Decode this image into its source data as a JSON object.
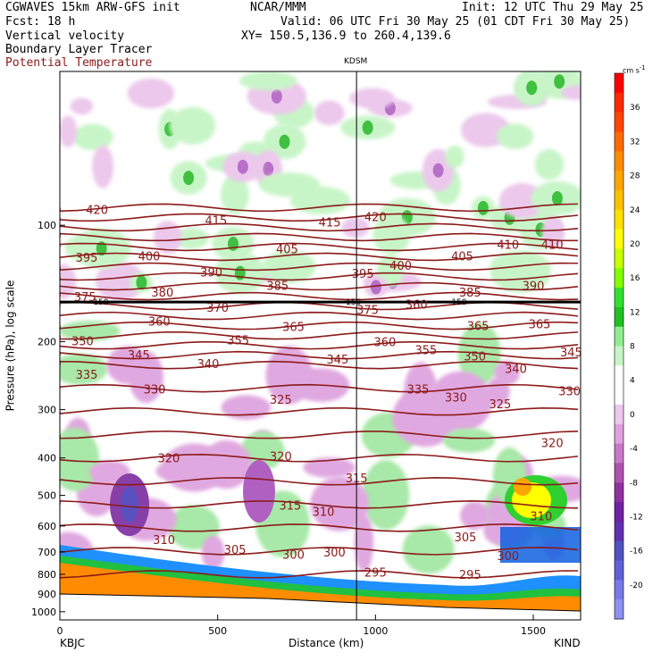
{
  "header": {
    "model": "CGWAVES 15km ARW-GFS init",
    "center": "NCAR/MMM",
    "init": "Init: 12 UTC Thu 29 May 25",
    "fcst": "Fcst:   18 h",
    "valid": "Valid: 06 UTC Fri 30 May 25 (01 CDT Fri 30 May 25)",
    "field1": "Vertical velocity",
    "xy": "XY= 150.5,136.9 to 260.4,139.6",
    "field2": "Boundary Layer Tracer",
    "field3": "Potential Temperature",
    "field3_color": "#8b1a1a"
  },
  "chart_data": {
    "type": "heatmap",
    "xlabel": "Distance (km)",
    "ylabel": "Pressure (hPa), log scale",
    "xlim": [
      0,
      1650
    ],
    "ylim_hpa": [
      1050,
      40
    ],
    "x_ticks": [
      0,
      500,
      1000,
      1500
    ],
    "y_ticks": [
      100,
      200,
      300,
      400,
      500,
      600,
      700,
      800,
      900,
      1000
    ],
    "start_label": "KBJC",
    "end_label": "KIND",
    "vertical_marker": {
      "label": "KDSM",
      "x": 940
    },
    "colorbar": {
      "unit": "cm s",
      "unit_exp": "-1",
      "ticks": [
        36,
        32,
        28,
        24,
        20,
        16,
        12,
        8,
        4,
        0,
        -4,
        -8,
        -12,
        -16,
        -20
      ],
      "colors": [
        "#ff0000",
        "#ff2a00",
        "#ff4500",
        "#ff6a00",
        "#ff8c00",
        "#ffa500",
        "#ffc000",
        "#ffe000",
        "#ffff00",
        "#c8ff00",
        "#7fff00",
        "#30e030",
        "#20c020",
        "#90ee90",
        "#c8f5c8",
        "#ffffff",
        "#ffffff",
        "#ecc8ec",
        "#e0a0e0",
        "#c878c8",
        "#b050b0",
        "#9030a0",
        "#7020a0",
        "#6030b0",
        "#5050c0",
        "#6060d8",
        "#7878e8",
        "#9090f0"
      ]
    },
    "theta_labels": [
      {
        "v": 420,
        "x": 118,
        "p": 91
      },
      {
        "v": 415,
        "x": 495,
        "p": 97
      },
      {
        "v": 415,
        "x": 855,
        "p": 98
      },
      {
        "v": 420,
        "x": 1000,
        "p": 95
      },
      {
        "v": 395,
        "x": 85,
        "p": 121
      },
      {
        "v": 400,
        "x": 283,
        "p": 120
      },
      {
        "v": 405,
        "x": 720,
        "p": 115
      },
      {
        "v": 390,
        "x": 480,
        "p": 132
      },
      {
        "v": 395,
        "x": 960,
        "p": 133
      },
      {
        "v": 400,
        "x": 1080,
        "p": 127
      },
      {
        "v": 405,
        "x": 1275,
        "p": 120
      },
      {
        "v": 410,
        "x": 1420,
        "p": 112
      },
      {
        "v": 410,
        "x": 1560,
        "p": 112
      },
      {
        "v": 385,
        "x": 690,
        "p": 143
      },
      {
        "v": 385,
        "x": 1300,
        "p": 149
      },
      {
        "v": 390,
        "x": 1500,
        "p": 143
      },
      {
        "v": 375,
        "x": 80,
        "p": 153
      },
      {
        "v": 380,
        "x": 325,
        "p": 149
      },
      {
        "v": 370,
        "x": 500,
        "p": 163
      },
      {
        "v": 375,
        "x": 975,
        "p": 165
      },
      {
        "v": 360,
        "x": 1130,
        "p": 160
      },
      {
        "v": 360,
        "x": 315,
        "p": 177
      },
      {
        "v": 365,
        "x": 740,
        "p": 183
      },
      {
        "v": 365,
        "x": 1325,
        "p": 182
      },
      {
        "v": 365,
        "x": 1520,
        "p": 180
      },
      {
        "v": 350,
        "x": 72,
        "p": 199
      },
      {
        "v": 355,
        "x": 565,
        "p": 198
      },
      {
        "v": 360,
        "x": 1030,
        "p": 200
      },
      {
        "v": 355,
        "x": 1160,
        "p": 210
      },
      {
        "v": 350,
        "x": 1315,
        "p": 218
      },
      {
        "v": 345,
        "x": 1620,
        "p": 213
      },
      {
        "v": 345,
        "x": 250,
        "p": 216
      },
      {
        "v": 340,
        "x": 470,
        "p": 228
      },
      {
        "v": 345,
        "x": 880,
        "p": 222
      },
      {
        "v": 340,
        "x": 1445,
        "p": 235
      },
      {
        "v": 335,
        "x": 85,
        "p": 243
      },
      {
        "v": 330,
        "x": 300,
        "p": 265
      },
      {
        "v": 335,
        "x": 1135,
        "p": 265
      },
      {
        "v": 330,
        "x": 1255,
        "p": 278
      },
      {
        "v": 330,
        "x": 1615,
        "p": 268
      },
      {
        "v": 325,
        "x": 700,
        "p": 282
      },
      {
        "v": 325,
        "x": 1395,
        "p": 290
      },
      {
        "v": 320,
        "x": 1560,
        "p": 365
      },
      {
        "v": 320,
        "x": 345,
        "p": 400
      },
      {
        "v": 320,
        "x": 700,
        "p": 395
      },
      {
        "v": 315,
        "x": 940,
        "p": 450
      },
      {
        "v": 315,
        "x": 730,
        "p": 530
      },
      {
        "v": 310,
        "x": 835,
        "p": 550
      },
      {
        "v": 310,
        "x": 1525,
        "p": 565
      },
      {
        "v": 310,
        "x": 330,
        "p": 650
      },
      {
        "v": 305,
        "x": 555,
        "p": 690
      },
      {
        "v": 300,
        "x": 740,
        "p": 710
      },
      {
        "v": 300,
        "x": 870,
        "p": 700
      },
      {
        "v": 305,
        "x": 1285,
        "p": 640
      },
      {
        "v": 300,
        "x": 1420,
        "p": 715
      },
      {
        "v": 295,
        "x": 1000,
        "p": 790
      },
      {
        "v": 295,
        "x": 1300,
        "p": 800
      }
    ],
    "pbl_label": {
      "v": 150,
      "items": [
        {
          "x": 130,
          "p": 158
        },
        {
          "x": 930,
          "p": 158
        },
        {
          "x": 1265,
          "p": 158
        }
      ]
    }
  }
}
